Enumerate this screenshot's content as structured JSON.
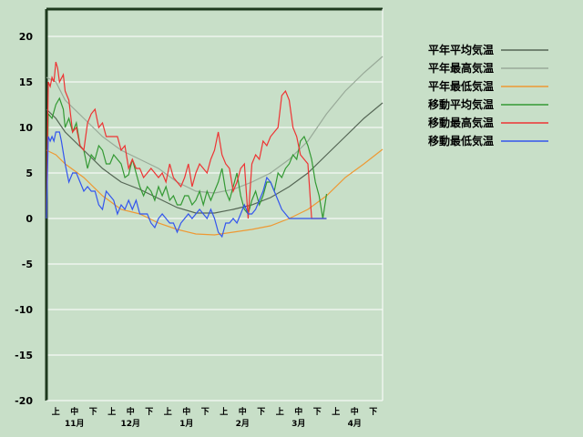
{
  "chart_data": {
    "type": "line",
    "title": "",
    "xlabel": "",
    "ylabel": "",
    "ylim": [
      -20,
      23
    ],
    "yticks": [
      20,
      15,
      10,
      5,
      0,
      -5,
      -10,
      -15,
      -20
    ],
    "x_subticks": [
      "上",
      "中",
      "下",
      "上",
      "中",
      "下",
      "上",
      "中",
      "下",
      "上",
      "中",
      "下",
      "上",
      "中",
      "下",
      "上",
      "中",
      "下"
    ],
    "months": [
      "11月",
      "12月",
      "1月",
      "2月",
      "3月",
      "4月"
    ],
    "grid": true,
    "legend_position": "right",
    "series": [
      {
        "name": "平年平均気温",
        "color": "#556655",
        "x": [
          0,
          5,
          10,
          20,
          30,
          40,
          50,
          60,
          70,
          80,
          90,
          100,
          110,
          120,
          130,
          140,
          150,
          160,
          170,
          180
        ],
        "y": [
          12,
          11,
          9.5,
          7.5,
          5.5,
          4,
          3.2,
          2.2,
          1.2,
          0.6,
          0.6,
          1,
          1.5,
          2.3,
          3.5,
          5,
          7,
          9,
          11,
          12.7
        ]
      },
      {
        "name": "平年最高気温",
        "color": "#99aa99",
        "x": [
          0,
          5,
          10,
          20,
          30,
          40,
          50,
          60,
          70,
          80,
          90,
          100,
          110,
          120,
          130,
          140,
          150,
          160,
          170,
          180
        ],
        "y": [
          15.5,
          15,
          13,
          11,
          9,
          7.5,
          6.5,
          5.5,
          4,
          3,
          2.8,
          3.2,
          4,
          5,
          6.5,
          8.5,
          11.5,
          14,
          16,
          17.8
        ]
      },
      {
        "name": "平年最低気温",
        "color": "#ee9933",
        "x": [
          0,
          5,
          10,
          20,
          30,
          40,
          50,
          60,
          70,
          80,
          90,
          100,
          110,
          120,
          130,
          140,
          150,
          160,
          170,
          180
        ],
        "y": [
          7.5,
          7,
          6,
          4.5,
          2.5,
          1,
          0.5,
          -0.5,
          -1.2,
          -1.7,
          -1.8,
          -1.5,
          -1.2,
          -0.8,
          0,
          1,
          2.5,
          4.5,
          6,
          7.6
        ]
      },
      {
        "name": "移動平均気温",
        "color": "#339933",
        "x": [
          0,
          1,
          3,
          5,
          7,
          9,
          10,
          12,
          14,
          16,
          18,
          20,
          22,
          24,
          26,
          28,
          30,
          32,
          34,
          36,
          38,
          40,
          42,
          44,
          46,
          48,
          50,
          52,
          54,
          56,
          58,
          60,
          62,
          64,
          66,
          68,
          70,
          72,
          74,
          76,
          78,
          80,
          82,
          84,
          86,
          88,
          90,
          92,
          94,
          96,
          98,
          100,
          102,
          104,
          106,
          108,
          110,
          112,
          114,
          116,
          118,
          120,
          122,
          124,
          126,
          128,
          130,
          132,
          134,
          136,
          138,
          140,
          142,
          144,
          146,
          148,
          150
        ],
        "y": [
          0,
          11.5,
          11,
          12.5,
          13.2,
          12,
          10,
          11,
          9.5,
          10.5,
          8,
          7.5,
          5.5,
          7,
          6.5,
          8,
          7.5,
          6,
          6,
          7,
          6.5,
          6,
          4.5,
          4.8,
          6.5,
          5,
          3.5,
          2.5,
          3.5,
          3,
          2,
          3.5,
          2.5,
          3.5,
          2,
          2.5,
          1.5,
          1.5,
          2.5,
          2.5,
          1.5,
          2,
          3,
          1.5,
          3,
          2,
          3,
          4,
          5.5,
          3,
          2,
          3.5,
          5,
          2.5,
          1,
          0.5,
          2,
          3,
          1.5,
          2.5,
          4,
          4,
          3,
          5,
          4.5,
          5.5,
          6,
          7,
          6.5,
          8.5,
          9,
          8,
          6.5,
          4,
          2.5,
          0,
          2.7
        ]
      },
      {
        "name": "移動最高気温",
        "color": "#ee3333",
        "x": [
          0,
          1,
          2,
          3,
          4,
          5,
          6,
          7,
          9,
          10,
          12,
          14,
          16,
          18,
          20,
          22,
          24,
          26,
          28,
          30,
          32,
          34,
          36,
          38,
          40,
          42,
          44,
          46,
          48,
          50,
          52,
          54,
          56,
          58,
          60,
          62,
          64,
          66,
          68,
          70,
          72,
          74,
          76,
          78,
          80,
          82,
          84,
          86,
          88,
          90,
          92,
          94,
          96,
          98,
          100,
          102,
          104,
          106,
          108,
          110,
          112,
          114,
          116,
          118,
          120,
          122,
          124,
          126,
          128,
          130,
          132,
          134,
          136,
          138,
          140,
          142,
          144,
          146,
          148,
          150
        ],
        "y": [
          0,
          15,
          14.5,
          15.5,
          15,
          17.2,
          16.5,
          15,
          15.8,
          14,
          13,
          9.5,
          10,
          8,
          7.5,
          10.5,
          11.5,
          12,
          10,
          10.5,
          9,
          9,
          9,
          9,
          7.5,
          8,
          5.5,
          6.5,
          5.5,
          5.5,
          4.5,
          5,
          5.5,
          5,
          4.5,
          5,
          4,
          6,
          4.5,
          4,
          3.5,
          4.5,
          6,
          3.5,
          5,
          6,
          5.5,
          5,
          6.5,
          7.5,
          9.5,
          7,
          6,
          5.5,
          3,
          4,
          5.5,
          6,
          0,
          6,
          7,
          6.5,
          8.5,
          8,
          9,
          9.5,
          10,
          13.5,
          14,
          13,
          10,
          9,
          7,
          6.5,
          6,
          0,
          0,
          0,
          0,
          0
        ]
      },
      {
        "name": "移動最低気温",
        "color": "#3355ee",
        "x": [
          0,
          1,
          2,
          3,
          4,
          5,
          6,
          7,
          8,
          10,
          12,
          14,
          16,
          18,
          20,
          22,
          24,
          26,
          28,
          30,
          32,
          34,
          36,
          38,
          40,
          42,
          44,
          46,
          48,
          50,
          52,
          54,
          56,
          58,
          60,
          62,
          64,
          66,
          68,
          70,
          72,
          74,
          76,
          78,
          80,
          82,
          84,
          86,
          88,
          90,
          92,
          94,
          96,
          98,
          100,
          102,
          104,
          106,
          108,
          110,
          112,
          114,
          116,
          118,
          120,
          122,
          124,
          126,
          128,
          130,
          132,
          134,
          136,
          138,
          140,
          142,
          144,
          146,
          148,
          150
        ],
        "y": [
          0,
          9,
          8.5,
          9,
          8.5,
          9.5,
          9.5,
          9.5,
          8.5,
          6,
          4,
          5,
          5,
          4,
          3,
          3.5,
          3,
          3,
          1.5,
          1,
          3,
          2.5,
          2,
          0.5,
          1.5,
          1,
          2,
          1,
          2,
          0.5,
          0.5,
          0.5,
          -0.5,
          -1,
          0,
          0.5,
          0,
          -0.5,
          -0.5,
          -1.5,
          -0.5,
          0,
          0.5,
          0,
          0.5,
          1,
          0.5,
          0,
          1,
          0,
          -1.5,
          -2,
          -0.5,
          -0.5,
          0,
          -0.5,
          0.5,
          1.5,
          0.5,
          0.5,
          1,
          2,
          3,
          4.5,
          4,
          3,
          2,
          1,
          0.5,
          0,
          0,
          0,
          0,
          0,
          0,
          0,
          0,
          0,
          0,
          0
        ]
      }
    ]
  }
}
